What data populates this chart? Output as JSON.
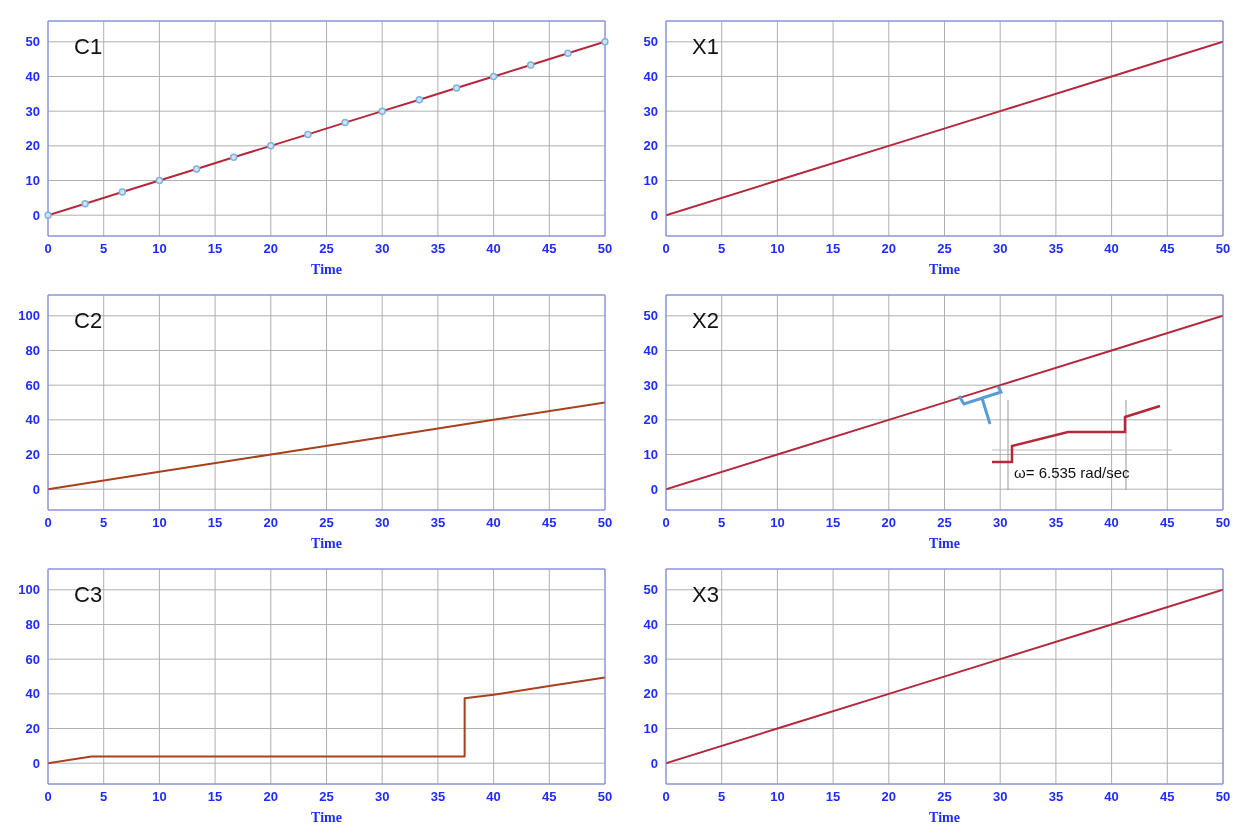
{
  "chart_data": [
    {
      "type": "line",
      "title": "C1",
      "xlabel": "Time",
      "x": [
        0,
        3.33,
        6.67,
        10,
        13.33,
        16.67,
        20,
        23.33,
        26.67,
        30,
        33.33,
        36.67,
        40,
        43.33,
        46.67,
        50
      ],
      "series": [
        {
          "color": "#b5283c",
          "values": [
            0,
            3.3,
            6.7,
            10,
            13.3,
            16.7,
            20,
            23.3,
            26.7,
            30,
            33.3,
            36.7,
            40,
            43.3,
            46.7,
            50
          ]
        }
      ],
      "marker": "circle",
      "xlim": [
        0,
        50
      ],
      "xticks": [
        0,
        5,
        10,
        15,
        20,
        25,
        30,
        35,
        40,
        45,
        50
      ],
      "ylim": [
        -6,
        56
      ],
      "yticks": [
        0,
        10,
        20,
        30,
        40,
        50
      ],
      "grid": true
    },
    {
      "type": "line",
      "title": "X1",
      "xlabel": "Time",
      "x": [
        0,
        10,
        20,
        30,
        40,
        50
      ],
      "series": [
        {
          "color": "#b5283c",
          "values": [
            0,
            10,
            20,
            30,
            40,
            50
          ]
        }
      ],
      "xlim": [
        0,
        50
      ],
      "xticks": [
        0,
        5,
        10,
        15,
        20,
        25,
        30,
        35,
        40,
        45,
        50
      ],
      "ylim": [
        -6,
        56
      ],
      "yticks": [
        0,
        10,
        20,
        30,
        40,
        50
      ],
      "grid": true
    },
    {
      "type": "line",
      "title": "C2",
      "xlabel": "Time",
      "x": [
        0,
        10,
        20,
        30,
        40,
        50
      ],
      "series": [
        {
          "color": "#a8401e",
          "values": [
            0,
            10,
            20,
            30,
            40,
            50
          ]
        }
      ],
      "xlim": [
        0,
        50
      ],
      "xticks": [
        0,
        5,
        10,
        15,
        20,
        25,
        30,
        35,
        40,
        45,
        50
      ],
      "ylim": [
        -12,
        112
      ],
      "yticks": [
        0,
        20,
        40,
        60,
        80,
        100
      ],
      "grid": true
    },
    {
      "type": "line",
      "title": "X2",
      "xlabel": "Time",
      "x": [
        0,
        10,
        20,
        30,
        40,
        50
      ],
      "series": [
        {
          "color": "#b5283c",
          "values": [
            0,
            10,
            20,
            30,
            40,
            50
          ]
        }
      ],
      "xlim": [
        0,
        50
      ],
      "xticks": [
        0,
        5,
        10,
        15,
        20,
        25,
        30,
        35,
        40,
        45,
        50
      ],
      "ylim": [
        -6,
        56
      ],
      "yticks": [
        0,
        10,
        20,
        30,
        40,
        50
      ],
      "grid": true,
      "annotations": [
        "ω= 6.535 rad/sec"
      ]
    },
    {
      "type": "line",
      "title": "C3",
      "xlabel": "Time",
      "x": [
        0,
        3.9,
        37.4,
        37.4,
        40,
        45,
        50
      ],
      "series": [
        {
          "color": "#a8401e",
          "values": [
            0,
            3.8,
            3.8,
            37.5,
            39.5,
            44.5,
            49.5
          ]
        }
      ],
      "xlim": [
        0,
        50
      ],
      "xticks": [
        0,
        5,
        10,
        15,
        20,
        25,
        30,
        35,
        40,
        45,
        50
      ],
      "ylim": [
        -12,
        112
      ],
      "yticks": [
        0,
        20,
        40,
        60,
        80,
        100
      ],
      "grid": true
    },
    {
      "type": "line",
      "title": "X3",
      "xlabel": "Time",
      "x": [
        0,
        10,
        20,
        30,
        40,
        50
      ],
      "series": [
        {
          "color": "#b5283c",
          "values": [
            0,
            10,
            20,
            30,
            40,
            50
          ]
        }
      ],
      "xlim": [
        0,
        50
      ],
      "xticks": [
        0,
        5,
        10,
        15,
        20,
        25,
        30,
        35,
        40,
        45,
        50
      ],
      "ylim": [
        -6,
        56
      ],
      "yticks": [
        0,
        10,
        20,
        30,
        40,
        50
      ],
      "grid": true
    }
  ]
}
